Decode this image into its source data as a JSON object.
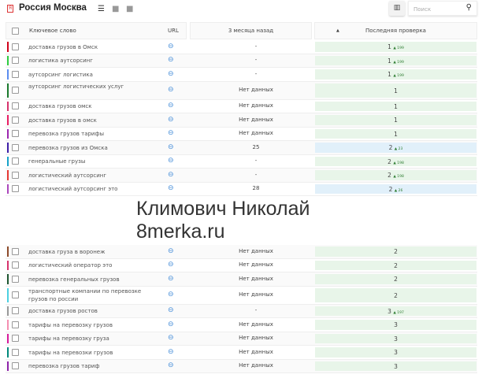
{
  "header": {
    "title": "Россия Москва",
    "search_placeholder": "Поиск"
  },
  "columns": {
    "keyword": "Ключевое слово",
    "url": "URL",
    "months_ago": "3 месяца назад",
    "sort": "▲",
    "last_check": "Последняя проверка"
  },
  "colors": {
    "green_cell": "#e8f5e9",
    "blue_cell": "#e1f0fa",
    "link": "#4a90d9"
  },
  "rows": [
    {
      "kw": "доставка грузов в Омск",
      "mo": "-",
      "pos": "1",
      "delta": "▲ 199",
      "color": "#d0021b",
      "cell": "green"
    },
    {
      "kw": "логистика аутсорсинг",
      "mo": "-",
      "pos": "1",
      "delta": "▲ 199",
      "color": "#2ecc40",
      "cell": "green"
    },
    {
      "kw": "аутсорсинг логистика",
      "mo": "-",
      "pos": "1",
      "delta": "▲ 199",
      "color": "#5b8def",
      "cell": "green"
    },
    {
      "kw": "аутсорсинг логистических услуг",
      "mo": "Нет данных",
      "pos": "1",
      "delta": "",
      "color": "#1b7a2e",
      "cell": "green",
      "tall": true
    },
    {
      "kw": "доставка грузов омск",
      "mo": "Нет данных",
      "pos": "1",
      "delta": "",
      "color": "#d6336c",
      "cell": "green"
    },
    {
      "kw": "доставка грузов в омск",
      "mo": "Нет данных",
      "pos": "1",
      "delta": "",
      "color": "#e91e63",
      "cell": "green"
    },
    {
      "kw": "перевозка грузов тарифы",
      "mo": "Нет данных",
      "pos": "1",
      "delta": "",
      "color": "#9c27b0",
      "cell": "green"
    },
    {
      "kw": "перевозка грузов из Омска",
      "mo": "25",
      "pos": "2",
      "delta": "▲ 23",
      "color": "#3f1fa8",
      "cell": "blue"
    },
    {
      "kw": "генеральные грузы",
      "mo": "-",
      "pos": "2",
      "delta": "▲ 198",
      "color": "#17a2c8",
      "cell": "green"
    },
    {
      "kw": "логистический аутсорсинг",
      "mo": "-",
      "pos": "2",
      "delta": "▲ 198",
      "color": "#e53935",
      "cell": "green"
    },
    {
      "kw": "логистический аутсорсинг это",
      "mo": "28",
      "pos": "2",
      "delta": "▲ 26",
      "color": "#ab47bc",
      "cell": "blue"
    },
    {
      "kw": "доставка груза в воронеж",
      "mo": "Нет данных",
      "pos": "2",
      "delta": "",
      "color": "#8d4a2a",
      "cell": "green"
    },
    {
      "kw": "логистический оператор это",
      "mo": "Нет данных",
      "pos": "2",
      "delta": "",
      "color": "#d6336c",
      "cell": "green"
    },
    {
      "kw": "перевозка генеральных грузов",
      "mo": "Нет данных",
      "pos": "2",
      "delta": "",
      "color": "#1e5631",
      "cell": "green"
    },
    {
      "kw": "транспортные компании по перевозке грузов по россии",
      "mo": "Нет данных",
      "pos": "2",
      "delta": "",
      "color": "#4dd0e1",
      "cell": "green",
      "tall": true
    },
    {
      "kw": "доставка грузов ростов",
      "mo": "-",
      "pos": "3",
      "delta": "▲ 197",
      "color": "#999999",
      "cell": "green"
    },
    {
      "kw": "тарифы на перевозку грузов",
      "mo": "Нет данных",
      "pos": "3",
      "delta": "",
      "color": "#f48fb1",
      "cell": "green"
    },
    {
      "kw": "тарифы на перевозку груза",
      "mo": "Нет данных",
      "pos": "3",
      "delta": "",
      "color": "#d81b9c",
      "cell": "green"
    },
    {
      "kw": "тарифы на перевозки грузов",
      "mo": "Нет данных",
      "pos": "3",
      "delta": "",
      "color": "#00897b",
      "cell": "green"
    },
    {
      "kw": "перевозка грузов тариф",
      "mo": "Нет данных",
      "pos": "3",
      "delta": "",
      "color": "#8e24aa",
      "cell": "green"
    }
  ],
  "watermark": {
    "line1": "Климович Николай",
    "line2": "8merka.ru"
  }
}
